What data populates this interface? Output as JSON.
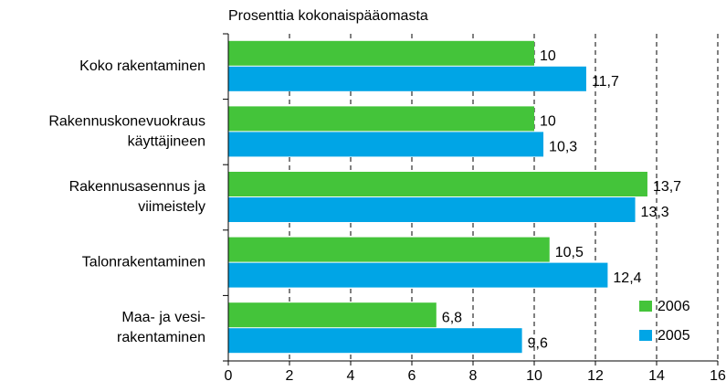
{
  "chart_data": {
    "type": "hbar",
    "title": "Prosenttia kokonaispääomasta",
    "categories": [
      "Koko rakentaminen",
      "Rakennuskonevuokraus\nkäyttäjineen",
      "Rakennusasennus ja\nviimeistely",
      "Talonrakentaminen",
      "Maa- ja vesi-\nrakentaminen"
    ],
    "series": [
      {
        "name": "2006",
        "color": "#44c43a",
        "values": [
          10,
          10,
          13.7,
          10.5,
          6.8
        ],
        "value_labels": [
          "10",
          "10",
          "13,7",
          "10,5",
          "6,8"
        ]
      },
      {
        "name": "2005",
        "color": "#00a5e6",
        "values": [
          11.7,
          10.3,
          13.3,
          12.4,
          9.6
        ],
        "value_labels": [
          "11,7",
          "10,3",
          "13,3",
          "12,4",
          "9,6"
        ]
      }
    ],
    "xlim": [
      0,
      16
    ],
    "xticks": [
      0,
      2,
      4,
      6,
      8,
      10,
      12,
      14,
      16
    ],
    "grid": true,
    "legend": "lower right"
  }
}
